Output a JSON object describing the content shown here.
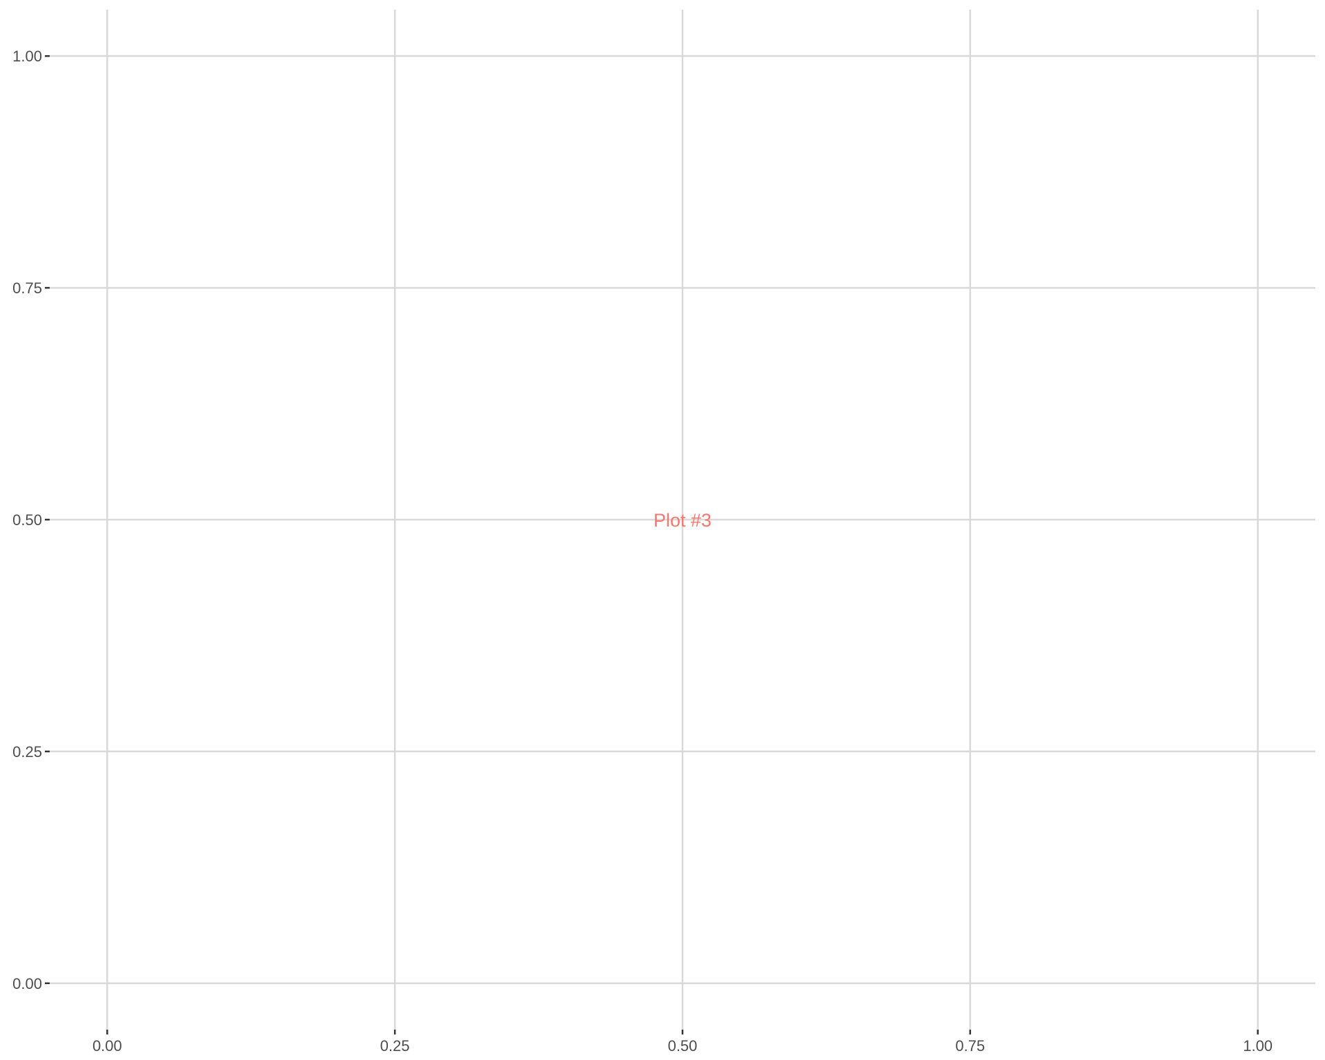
{
  "chart_data": {
    "type": "scatter",
    "title": "",
    "xlabel": "",
    "ylabel": "",
    "xlim": [
      -0.05,
      1.05
    ],
    "ylim": [
      -0.05,
      1.05
    ],
    "x_ticks": [
      "0.00",
      "0.25",
      "0.50",
      "0.75",
      "1.00"
    ],
    "y_ticks": [
      "0.00",
      "0.25",
      "0.50",
      "0.75",
      "1.00"
    ],
    "grid": true,
    "legend": "none",
    "annotations": [
      {
        "text": "Plot #3",
        "x": 0.5,
        "y": 0.5,
        "color": "#f8766d"
      }
    ],
    "colors": {
      "background": "#ffffff",
      "grid": "#d9d9d9",
      "tick_text": "#4d4d4d",
      "tick_mark": "#333333"
    }
  }
}
